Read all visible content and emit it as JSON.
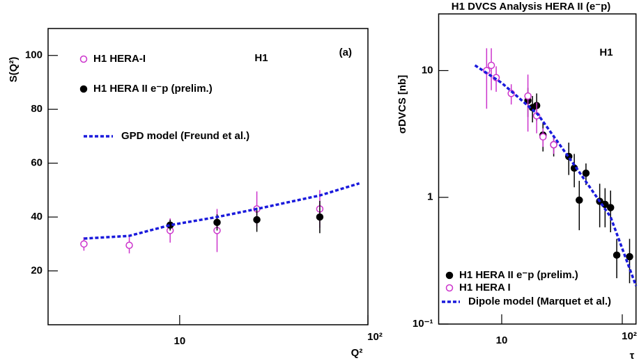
{
  "chart_data": [
    {
      "type": "scatter",
      "xscale": "log",
      "yscale": "linear",
      "xlabel": "Q²",
      "ylabel": "S(Q²)",
      "xlim": [
        2,
        100
      ],
      "ylim": [
        0,
        110
      ],
      "xticks": [
        10,
        {
          "value": 100,
          "label": "10²"
        }
      ],
      "yticks": [
        20,
        40,
        60,
        80,
        100
      ],
      "annotations": [
        "H1",
        "(a)"
      ],
      "series": [
        {
          "name": "H1 HERA-I",
          "color": "#cc33cc",
          "marker": "open",
          "x": [
            3.1,
            5.4,
            8.9,
            15.8,
            25.7,
            55.5
          ],
          "values": [
            30,
            29.5,
            35,
            35,
            43,
            43
          ],
          "errors": [
            2.5,
            3,
            4.5,
            8,
            6.5,
            7
          ]
        },
        {
          "name": "H1 HERA II e⁻p (prelim.)",
          "color": "#000000",
          "marker": "filled",
          "x": [
            8.9,
            15.8,
            25.7,
            55.5
          ],
          "values": [
            37,
            38,
            39,
            40
          ],
          "errors": [
            2,
            3,
            4.5,
            6
          ]
        },
        {
          "name": "GPD model (Freund et al.)",
          "color": "#1a1adc",
          "line": "dashed",
          "x": [
            3.1,
            5.4,
            8.9,
            15.8,
            25.7,
            55.5,
            90
          ],
          "values": [
            32,
            33,
            37,
            40,
            43,
            48,
            52.5
          ]
        }
      ]
    },
    {
      "type": "scatter",
      "xscale": "log",
      "yscale": "log",
      "title": "H1 DVCS Analysis HERA II (e⁻p)",
      "xlabel": "τ",
      "ylabel": "σDVCS [nb]",
      "xlim": [
        3,
        130
      ],
      "ylim": [
        0.1,
        28
      ],
      "xticks": [
        10,
        {
          "value": 100,
          "label": "10²"
        }
      ],
      "yticks": [
        {
          "value": 0.1,
          "label": "10⁻¹"
        },
        1,
        10
      ],
      "annotations": [
        "H1"
      ],
      "series": [
        {
          "name": "H1 HERA II e⁻p (prelim.)",
          "color": "#000000",
          "marker": "filled",
          "x": [
            16.5,
            18,
            19.5,
            22,
            27,
            36,
            40,
            44,
            50,
            65,
            72,
            80,
            90,
            115
          ],
          "values": [
            5.8,
            5.1,
            5.3,
            3.1,
            2.6,
            2.1,
            1.7,
            0.95,
            1.55,
            0.93,
            0.88,
            0.83,
            0.35,
            0.34
          ],
          "errors": [
            1.5,
            1.2,
            1.3,
            0.8,
            0.5,
            0.6,
            0.5,
            0.4,
            0.3,
            0.35,
            0.3,
            0.3,
            0.12,
            0.13
          ]
        },
        {
          "name": "H1 HERA I",
          "color": "#cc33cc",
          "marker": "open",
          "x": [
            7.5,
            8.2,
            9,
            12,
            16.5,
            19.5,
            22,
            27
          ],
          "values": [
            10,
            11,
            8.8,
            6.6,
            6.3,
            4.4,
            3.0,
            2.6
          ],
          "errors": [
            5,
            4,
            2,
            1.2,
            3,
            1.2,
            0.5,
            0.4
          ]
        },
        {
          "name": "Dipole model (Marquet et al.)",
          "color": "#1a1adc",
          "line": "dashed",
          "x": [
            6,
            10,
            20,
            40,
            80,
            130
          ],
          "values": [
            11,
            8,
            4.5,
            1.8,
            0.7,
            0.2
          ]
        }
      ]
    }
  ]
}
